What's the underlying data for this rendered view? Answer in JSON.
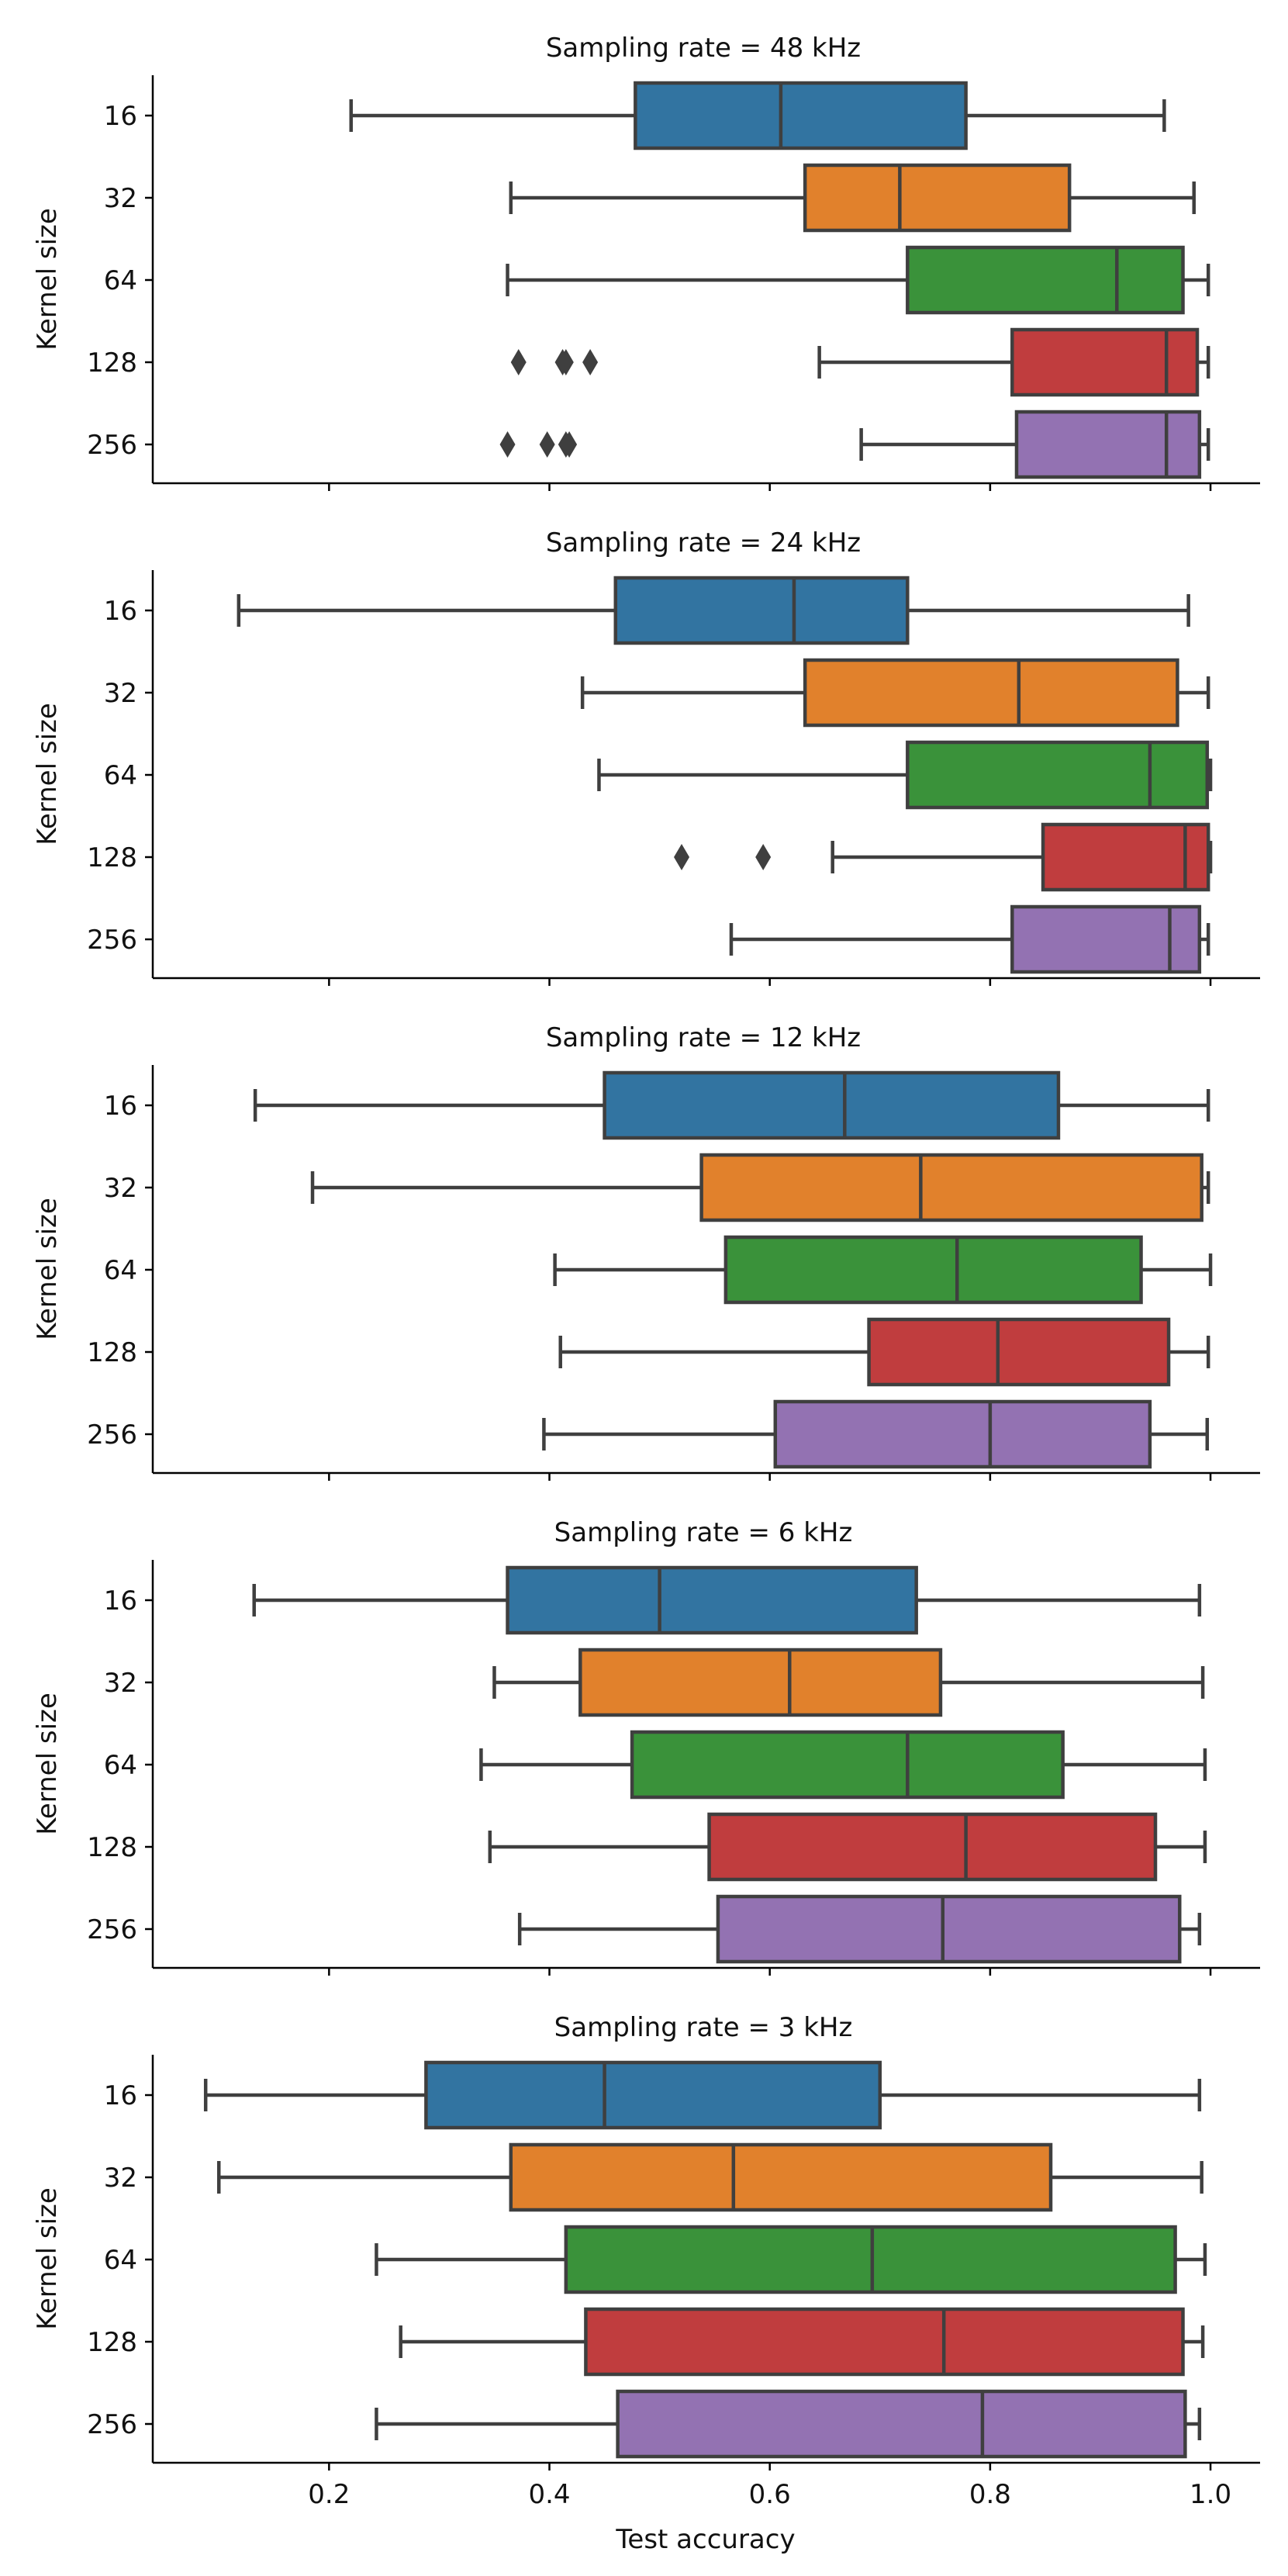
{
  "chart_data": {
    "type": "box",
    "orientation": "horizontal",
    "xlabel": "Test accuracy",
    "ylabel": "Kernel size",
    "xlim": [
      0.04,
      1.045
    ],
    "xticks": [
      0.2,
      0.4,
      0.6,
      0.8,
      1.0
    ],
    "xtick_labels": [
      "0.2",
      "0.4",
      "0.6",
      "0.8",
      "1.0"
    ],
    "categories": [
      "16",
      "32",
      "64",
      "128",
      "256"
    ],
    "colors": [
      "#3274a1",
      "#e1812c",
      "#3a923a",
      "#c03d3e",
      "#9372b2"
    ],
    "edge_color": "#3f3f3f",
    "grid": false,
    "legend": "none",
    "panels": [
      {
        "title": "Sampling rate = 48 kHz",
        "boxes": [
          {
            "category": "16",
            "whisker_low": 0.22,
            "q1": 0.478,
            "median": 0.61,
            "q3": 0.778,
            "whisker_high": 0.958,
            "outliers": []
          },
          {
            "category": "32",
            "whisker_low": 0.365,
            "q1": 0.632,
            "median": 0.718,
            "q3": 0.872,
            "whisker_high": 0.985,
            "outliers": []
          },
          {
            "category": "64",
            "whisker_low": 0.362,
            "q1": 0.725,
            "median": 0.915,
            "q3": 0.975,
            "whisker_high": 0.998,
            "outliers": []
          },
          {
            "category": "128",
            "whisker_low": 0.645,
            "q1": 0.82,
            "median": 0.96,
            "q3": 0.988,
            "whisker_high": 0.998,
            "outliers": [
              0.372,
              0.412,
              0.415,
              0.437
            ]
          },
          {
            "category": "256",
            "whisker_low": 0.683,
            "q1": 0.824,
            "median": 0.96,
            "q3": 0.99,
            "whisker_high": 0.998,
            "outliers": [
              0.362,
              0.398,
              0.415,
              0.418
            ]
          }
        ]
      },
      {
        "title": "Sampling rate = 24 kHz",
        "boxes": [
          {
            "category": "16",
            "whisker_low": 0.118,
            "q1": 0.46,
            "median": 0.622,
            "q3": 0.725,
            "whisker_high": 0.98,
            "outliers": []
          },
          {
            "category": "32",
            "whisker_low": 0.43,
            "q1": 0.632,
            "median": 0.826,
            "q3": 0.97,
            "whisker_high": 0.998,
            "outliers": []
          },
          {
            "category": "64",
            "whisker_low": 0.445,
            "q1": 0.725,
            "median": 0.945,
            "q3": 0.997,
            "whisker_high": 1.0,
            "outliers": []
          },
          {
            "category": "128",
            "whisker_low": 0.657,
            "q1": 0.848,
            "median": 0.977,
            "q3": 0.998,
            "whisker_high": 1.0,
            "outliers": [
              0.52,
              0.594
            ]
          },
          {
            "category": "256",
            "whisker_low": 0.565,
            "q1": 0.82,
            "median": 0.963,
            "q3": 0.99,
            "whisker_high": 0.998,
            "outliers": []
          }
        ]
      },
      {
        "title": "Sampling rate = 12 kHz",
        "boxes": [
          {
            "category": "16",
            "whisker_low": 0.133,
            "q1": 0.45,
            "median": 0.668,
            "q3": 0.862,
            "whisker_high": 0.998,
            "outliers": []
          },
          {
            "category": "32",
            "whisker_low": 0.185,
            "q1": 0.538,
            "median": 0.737,
            "q3": 0.992,
            "whisker_high": 0.998,
            "outliers": []
          },
          {
            "category": "64",
            "whisker_low": 0.405,
            "q1": 0.56,
            "median": 0.77,
            "q3": 0.937,
            "whisker_high": 1.0,
            "outliers": []
          },
          {
            "category": "128",
            "whisker_low": 0.41,
            "q1": 0.69,
            "median": 0.807,
            "q3": 0.962,
            "whisker_high": 0.998,
            "outliers": []
          },
          {
            "category": "256",
            "whisker_low": 0.395,
            "q1": 0.605,
            "median": 0.8,
            "q3": 0.945,
            "whisker_high": 0.997,
            "outliers": []
          }
        ]
      },
      {
        "title": "Sampling rate = 6 kHz",
        "boxes": [
          {
            "category": "16",
            "whisker_low": 0.132,
            "q1": 0.362,
            "median": 0.5,
            "q3": 0.733,
            "whisker_high": 0.99,
            "outliers": []
          },
          {
            "category": "32",
            "whisker_low": 0.35,
            "q1": 0.428,
            "median": 0.618,
            "q3": 0.755,
            "whisker_high": 0.993,
            "outliers": []
          },
          {
            "category": "64",
            "whisker_low": 0.338,
            "q1": 0.475,
            "median": 0.725,
            "q3": 0.866,
            "whisker_high": 0.995,
            "outliers": []
          },
          {
            "category": "128",
            "whisker_low": 0.346,
            "q1": 0.545,
            "median": 0.778,
            "q3": 0.95,
            "whisker_high": 0.995,
            "outliers": []
          },
          {
            "category": "256",
            "whisker_low": 0.373,
            "q1": 0.553,
            "median": 0.757,
            "q3": 0.972,
            "whisker_high": 0.99,
            "outliers": []
          }
        ]
      },
      {
        "title": "Sampling rate = 3 kHz",
        "boxes": [
          {
            "category": "16",
            "whisker_low": 0.088,
            "q1": 0.288,
            "median": 0.45,
            "q3": 0.7,
            "whisker_high": 0.99,
            "outliers": []
          },
          {
            "category": "32",
            "whisker_low": 0.1,
            "q1": 0.365,
            "median": 0.567,
            "q3": 0.855,
            "whisker_high": 0.992,
            "outliers": []
          },
          {
            "category": "64",
            "whisker_low": 0.243,
            "q1": 0.415,
            "median": 0.693,
            "q3": 0.968,
            "whisker_high": 0.995,
            "outliers": []
          },
          {
            "category": "128",
            "whisker_low": 0.265,
            "q1": 0.433,
            "median": 0.758,
            "q3": 0.975,
            "whisker_high": 0.993,
            "outliers": []
          },
          {
            "category": "256",
            "whisker_low": 0.243,
            "q1": 0.462,
            "median": 0.793,
            "q3": 0.977,
            "whisker_high": 0.99,
            "outliers": []
          }
        ]
      }
    ]
  }
}
